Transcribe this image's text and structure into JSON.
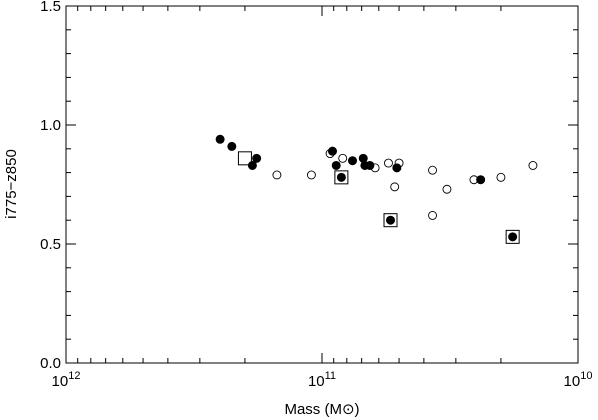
{
  "chart_data": {
    "type": "scatter",
    "title": "",
    "xlabel": "Mass (M⊙)",
    "ylabel": "i775−z850",
    "x_scale": "log",
    "x_reversed": true,
    "xlim": [
      1000000000000.0,
      10000000000.0
    ],
    "ylim": [
      0.0,
      1.5
    ],
    "grid": false,
    "x_ticks": [
      {
        "value": 1000000000000.0,
        "base": "10",
        "exp": "12"
      },
      {
        "value": 100000000000.0,
        "base": "10",
        "exp": "11"
      },
      {
        "value": 10000000000.0,
        "base": "10",
        "exp": "10"
      }
    ],
    "y_ticks": [
      {
        "value": 0.0,
        "label": "0.0"
      },
      {
        "value": 0.5,
        "label": "0.5"
      },
      {
        "value": 1.0,
        "label": "1.0"
      },
      {
        "value": 1.5,
        "label": "1.5"
      }
    ],
    "series": [
      {
        "marker": "filled-circle",
        "points": [
          [
            250000000000.0,
            0.94
          ],
          [
            225000000000.0,
            0.91
          ],
          [
            180000000000.0,
            0.86
          ],
          [
            187000000000.0,
            0.83
          ],
          [
            91000000000.0,
            0.89
          ],
          [
            88000000000.0,
            0.83
          ],
          [
            84000000000.0,
            0.78
          ],
          [
            76000000000.0,
            0.85
          ],
          [
            69000000000.0,
            0.86
          ],
          [
            68000000000.0,
            0.83
          ],
          [
            65000000000.0,
            0.83
          ],
          [
            51000000000.0,
            0.82
          ],
          [
            54000000000.0,
            0.6
          ],
          [
            24000000000.0,
            0.77
          ],
          [
            18000000000.0,
            0.53
          ]
        ]
      },
      {
        "marker": "open-circle",
        "points": [
          [
            150000000000.0,
            0.79
          ],
          [
            110000000000.0,
            0.79
          ],
          [
            93000000000.0,
            0.88
          ],
          [
            83000000000.0,
            0.86
          ],
          [
            62000000000.0,
            0.82
          ],
          [
            55000000000.0,
            0.84
          ],
          [
            50000000000.0,
            0.84
          ],
          [
            52000000000.0,
            0.74
          ],
          [
            37000000000.0,
            0.81
          ],
          [
            37000000000.0,
            0.62
          ],
          [
            32500000000.0,
            0.73
          ],
          [
            25500000000.0,
            0.77
          ],
          [
            20000000000.0,
            0.78
          ],
          [
            15000000000.0,
            0.83
          ]
        ]
      },
      {
        "marker": "open-square",
        "points": [
          [
            200000000000.0,
            0.86
          ],
          [
            84000000000.0,
            0.78
          ],
          [
            54000000000.0,
            0.6
          ],
          [
            18000000000.0,
            0.53
          ]
        ]
      }
    ]
  }
}
